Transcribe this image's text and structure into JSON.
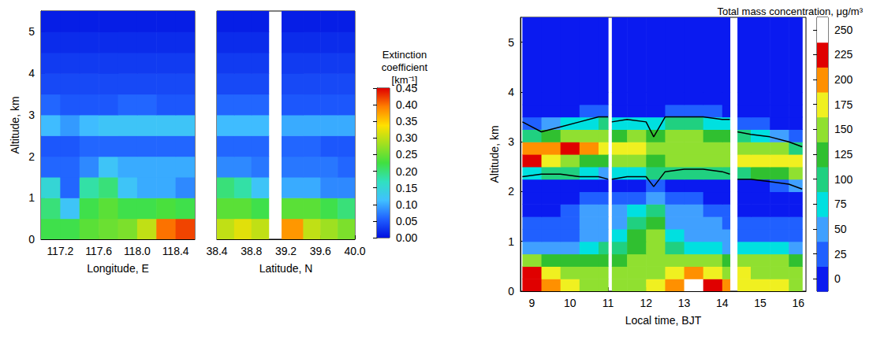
{
  "chart_data": [
    {
      "type": "heatmap",
      "y_label": "Altitude, km",
      "ylim": [
        0,
        5.5
      ],
      "yticks": [
        0,
        1,
        2,
        3,
        4,
        5
      ],
      "y_edges": [
        0,
        0.5,
        1,
        1.5,
        2,
        2.5,
        3,
        3.5,
        4,
        4.5,
        5,
        5.5
      ],
      "panels": [
        {
          "x_label": "Longitude, E",
          "xlim": [
            117.0,
            118.6
          ],
          "xticks": [
            117.2,
            117.6,
            {
              "value": 118.0,
              "label": "118.0"
            },
            118.4
          ],
          "x_edges": [
            117.0,
            117.2,
            117.4,
            117.6,
            117.8,
            118.0,
            118.2,
            118.4,
            118.6
          ],
          "cells": [
            [
              0.22,
              0.22,
              0.24,
              0.25,
              0.26,
              0.3,
              0.4,
              0.42
            ],
            [
              0.2,
              0.12,
              0.22,
              0.24,
              0.22,
              0.22,
              0.23,
              0.22
            ],
            [
              0.15,
              0.06,
              0.18,
              0.2,
              0.12,
              0.1,
              0.1,
              0.08
            ],
            [
              0.06,
              0.06,
              0.08,
              0.12,
              0.1,
              0.1,
              0.1,
              0.1
            ],
            [
              0.05,
              0.05,
              0.06,
              0.06,
              0.06,
              0.06,
              0.06,
              0.06
            ],
            [
              0.11,
              0.09,
              0.11,
              0.12,
              0.12,
              0.12,
              0.12,
              0.12
            ],
            [
              0.06,
              0.05,
              0.05,
              0.05,
              0.06,
              0.06,
              0.05,
              0.05
            ],
            [
              0.04,
              0.04,
              0.04,
              0.04,
              0.04,
              0.04,
              0.04,
              0.04
            ],
            [
              0.03,
              0.03,
              0.03,
              0.03,
              0.03,
              0.03,
              0.03,
              0.03
            ],
            [
              0.02,
              0.02,
              0.02,
              0.02,
              0.02,
              0.02,
              0.02,
              0.02
            ],
            [
              0.01,
              0.01,
              0.01,
              0.01,
              0.01,
              0.01,
              0.01,
              0.01
            ]
          ]
        },
        {
          "x_label": "Latitude, N",
          "xlim": [
            38.4,
            40.0
          ],
          "xticks": [
            38.4,
            38.8,
            39.2,
            39.6,
            {
              "value": 40.0,
              "label": "40.0"
            }
          ],
          "x_edges": [
            38.4,
            38.6,
            38.8,
            39.0,
            39.15,
            39.4,
            39.6,
            39.8,
            40.0
          ],
          "cells": [
            [
              0.3,
              0.32,
              0.3,
              null,
              0.38,
              0.3,
              0.28,
              0.26
            ],
            [
              0.24,
              0.24,
              0.22,
              null,
              0.24,
              0.24,
              0.22,
              0.2
            ],
            [
              0.2,
              0.18,
              0.12,
              null,
              0.1,
              0.1,
              0.08,
              0.08
            ],
            [
              0.08,
              0.08,
              0.07,
              null,
              0.07,
              0.07,
              0.07,
              0.06
            ],
            [
              0.06,
              0.06,
              0.06,
              null,
              0.06,
              0.06,
              0.05,
              0.05
            ],
            [
              0.11,
              0.11,
              0.11,
              null,
              0.1,
              0.1,
              0.1,
              0.1
            ],
            [
              0.06,
              0.06,
              0.06,
              null,
              0.05,
              0.05,
              0.05,
              0.05
            ],
            [
              0.04,
              0.04,
              0.04,
              null,
              0.04,
              0.04,
              0.04,
              0.04
            ],
            [
              0.03,
              0.03,
              0.03,
              null,
              0.03,
              0.03,
              0.03,
              0.03
            ],
            [
              0.02,
              0.02,
              0.02,
              null,
              0.02,
              0.02,
              0.02,
              0.02
            ],
            [
              0.01,
              0.01,
              0.01,
              null,
              0.01,
              0.01,
              0.01,
              0.01
            ]
          ]
        }
      ],
      "colorbar": {
        "title": "Extinction coefficient [km⁻¹]",
        "range": [
          0,
          0.45
        ],
        "ticks": [
          {
            "value": 0,
            "label": "0.00"
          },
          {
            "value": 0.05,
            "label": "0.05"
          },
          {
            "value": 0.1,
            "label": "0.10"
          },
          {
            "value": 0.15,
            "label": "0.15"
          },
          {
            "value": 0.2,
            "label": "0.20"
          },
          {
            "value": 0.25,
            "label": "0.25"
          },
          {
            "value": 0.3,
            "label": "0.30"
          },
          {
            "value": 0.35,
            "label": "0.35"
          },
          {
            "value": 0.4,
            "label": "0.40"
          },
          {
            "value": 0.45,
            "label": "0.45"
          }
        ]
      }
    },
    {
      "type": "heatmap",
      "x_label": "Local time, BJT",
      "y_label": "Altitude, km",
      "xlim": [
        8.7,
        16.2
      ],
      "xticks": [
        9,
        10,
        11,
        12,
        13,
        14,
        15,
        16
      ],
      "ylim": [
        0,
        5.5
      ],
      "yticks": [
        0,
        1,
        2,
        3,
        4,
        5
      ],
      "x_edges": [
        8.75,
        9.25,
        9.75,
        10.25,
        10.75,
        11.0,
        11.1,
        11.5,
        12.0,
        12.5,
        13.0,
        13.5,
        14.0,
        14.2,
        14.4,
        14.75,
        15.25,
        15.75,
        16.1
      ],
      "y_edges": [
        0,
        0.25,
        0.5,
        0.75,
        1,
        1.25,
        1.5,
        1.75,
        2,
        2.25,
        2.5,
        2.75,
        3,
        3.25,
        3.5,
        3.75,
        4,
        5.5
      ],
      "cells": [
        [
          225,
          200,
          175,
          150,
          150,
          null,
          150,
          150,
          175,
          200,
          250,
          225,
          200,
          null,
          175,
          175,
          175,
          150
        ],
        [
          225,
          175,
          150,
          150,
          150,
          null,
          150,
          150,
          150,
          175,
          200,
          175,
          150,
          null,
          175,
          150,
          150,
          150
        ],
        [
          150,
          125,
          125,
          125,
          125,
          null,
          125,
          150,
          150,
          150,
          150,
          150,
          125,
          null,
          150,
          150,
          150,
          125
        ],
        [
          50,
          50,
          50,
          75,
          100,
          null,
          100,
          125,
          150,
          100,
          75,
          75,
          50,
          null,
          75,
          75,
          75,
          50
        ],
        [
          25,
          25,
          25,
          50,
          50,
          null,
          75,
          125,
          150,
          75,
          50,
          50,
          50,
          null,
          25,
          25,
          25,
          25
        ],
        [
          25,
          25,
          25,
          50,
          50,
          null,
          50,
          100,
          125,
          50,
          50,
          50,
          25,
          null,
          25,
          25,
          25,
          25
        ],
        [
          0,
          0,
          25,
          50,
          50,
          null,
          50,
          75,
          100,
          50,
          50,
          25,
          25,
          null,
          0,
          0,
          0,
          0
        ],
        [
          0,
          0,
          0,
          25,
          25,
          null,
          25,
          25,
          50,
          25,
          25,
          0,
          0,
          null,
          0,
          0,
          0,
          0
        ],
        [
          0,
          0,
          0,
          0,
          0,
          null,
          0,
          0,
          25,
          0,
          0,
          0,
          0,
          null,
          0,
          0,
          25,
          50
        ],
        [
          75,
          100,
          100,
          75,
          50,
          null,
          75,
          75,
          100,
          100,
          100,
          100,
          100,
          null,
          100,
          125,
          125,
          150
        ],
        [
          225,
          175,
          150,
          125,
          125,
          null,
          150,
          150,
          125,
          150,
          150,
          150,
          150,
          null,
          175,
          175,
          175,
          175
        ],
        [
          200,
          200,
          225,
          200,
          175,
          null,
          175,
          175,
          150,
          150,
          150,
          150,
          150,
          null,
          150,
          150,
          150,
          100
        ],
        [
          100,
          125,
          150,
          150,
          150,
          null,
          125,
          150,
          125,
          150,
          150,
          125,
          125,
          null,
          100,
          75,
          50,
          25
        ],
        [
          25,
          50,
          75,
          75,
          100,
          null,
          75,
          75,
          75,
          100,
          100,
          75,
          75,
          null,
          25,
          25,
          0,
          0
        ],
        [
          0,
          0,
          0,
          25,
          25,
          null,
          0,
          0,
          0,
          25,
          25,
          25,
          0,
          null,
          0,
          0,
          0,
          0
        ],
        [
          0,
          0,
          0,
          0,
          0,
          null,
          0,
          0,
          0,
          0,
          0,
          0,
          0,
          null,
          0,
          0,
          0,
          0
        ],
        [
          0,
          0,
          0,
          0,
          0,
          null,
          0,
          0,
          0,
          0,
          0,
          0,
          0,
          null,
          0,
          0,
          0,
          0
        ]
      ],
      "layer_top": {
        "x": [
          8.75,
          9.25,
          9.75,
          10.25,
          10.75,
          11.0,
          11.05,
          11.1,
          11.5,
          12.0,
          12.2,
          12.5,
          13.0,
          13.5,
          14.0,
          14.2,
          14.3,
          14.4,
          14.75,
          15.25,
          15.75,
          16.1
        ],
        "values": [
          3.4,
          3.2,
          3.3,
          3.4,
          3.5,
          3.5,
          null,
          3.4,
          3.45,
          3.4,
          3.1,
          3.5,
          3.5,
          3.5,
          3.45,
          3.45,
          null,
          3.2,
          3.15,
          3.1,
          3.0,
          2.9
        ]
      },
      "layer_base": {
        "x": [
          8.75,
          9.25,
          9.75,
          10.25,
          10.75,
          11.0,
          11.05,
          11.1,
          11.5,
          12.0,
          12.2,
          12.5,
          13.0,
          13.5,
          14.0,
          14.2,
          14.3,
          14.4,
          14.75,
          15.25,
          15.75,
          16.1
        ],
        "values": [
          2.3,
          2.35,
          2.35,
          2.3,
          2.3,
          2.25,
          null,
          2.25,
          2.3,
          2.3,
          2.1,
          2.4,
          2.45,
          2.45,
          2.4,
          2.35,
          null,
          2.25,
          2.25,
          2.2,
          2.15,
          2.05
        ]
      },
      "colorbar": {
        "title": "Total mass concentration, μg/m³",
        "range": [
          -12.5,
          262.5
        ],
        "ticks": [
          0,
          25,
          50,
          75,
          100,
          125,
          150,
          175,
          200,
          225,
          250
        ]
      }
    }
  ]
}
